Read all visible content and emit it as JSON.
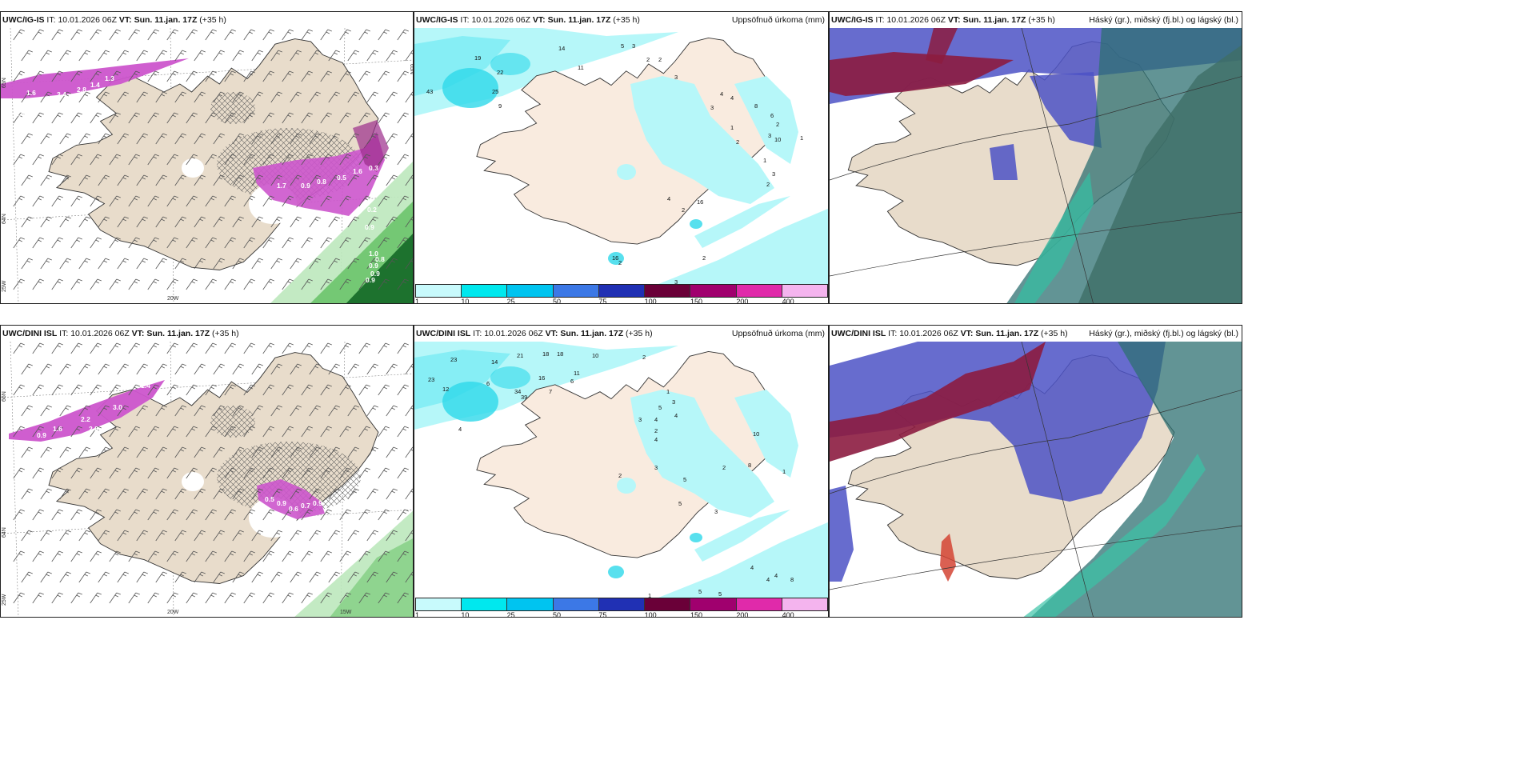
{
  "panels": [
    {
      "id": "p1",
      "model": "UWC/IG-IS",
      "it_label": "IT:",
      "it_value": "10.01.2026 06Z",
      "vt_label": "VT: Sun. 11.jan. 17Z",
      "lead": "(+35 h)",
      "right_label": "",
      "lat_labels": [
        "65N",
        "64N"
      ],
      "lon_labels": [
        "25W",
        "20W"
      ],
      "lat_right": "65N",
      "values": [
        "1.6",
        "3.4",
        "2.8",
        "1.4",
        "1.3",
        "1.5",
        "1.7",
        "0.9",
        "0.8",
        "0.5",
        "1.6",
        "0.3",
        "0.2",
        "0.9",
        "1.0",
        "0.8",
        "0.9",
        "0.9",
        "0.9"
      ]
    },
    {
      "id": "p2",
      "model": "UWC/IG-IS",
      "it_label": "IT:",
      "it_value": "10.01.2026 06Z",
      "vt_label": "VT: Sun. 11.jan. 17Z",
      "lead": "(+35 h)",
      "right_label": "Uppsöfnuð úrkoma (mm)",
      "values": [
        "19",
        "14",
        "5",
        "3",
        "2",
        "2",
        "43",
        "22",
        "25",
        "9",
        "11",
        "3",
        "4",
        "4",
        "8",
        "3",
        "6",
        "2",
        "3",
        "1",
        "10",
        "1",
        "2",
        "4",
        "3",
        "2",
        "16",
        "16",
        "2",
        "3",
        "2",
        "2",
        "6",
        "1"
      ]
    },
    {
      "id": "p3",
      "model": "UWC/IG-IS",
      "it_label": "IT:",
      "it_value": "10.01.2026 06Z",
      "vt_label": "VT: Sun. 11.jan. 17Z",
      "lead": "(+35 h)",
      "right_label": "Háský (gr.), miðský (fj.bl.) og lágský (bl.)"
    },
    {
      "id": "p4",
      "model": "UWC/DINI ISL",
      "it_label": "IT:",
      "it_value": "10.01.2026 06Z",
      "vt_label": "VT: Sun. 11.jan. 17Z",
      "lead": "(+35 h)",
      "right_label": "",
      "lat_labels": [
        "66N",
        "64N"
      ],
      "lon_labels": [
        "25W",
        "20W",
        "15W"
      ],
      "lat_right": "",
      "values": [
        "1.4",
        "3.0",
        "2.2",
        "2.8",
        "0.9",
        "1.6",
        "0.5",
        "0.9",
        "0.6",
        "0.7",
        "0.9"
      ]
    },
    {
      "id": "p5",
      "model": "UWC/DINI ISL",
      "it_label": "IT:",
      "it_value": "10.01.2026 06Z",
      "vt_label": "VT: Sun. 11.jan. 17Z",
      "lead": "(+35 h)",
      "right_label": "Uppsöfnuð úrkoma (mm)",
      "values": [
        "23",
        "21",
        "18",
        "18",
        "10",
        "2",
        "14",
        "23",
        "12",
        "16",
        "6",
        "6",
        "7",
        "39",
        "34",
        "4",
        "11",
        "1",
        "3",
        "5",
        "4",
        "4",
        "2",
        "3",
        "10",
        "8",
        "2",
        "5",
        "3",
        "2",
        "4",
        "1",
        "5",
        "3",
        "1",
        "4",
        "4",
        "4",
        "8",
        "5",
        "5"
      ]
    },
    {
      "id": "p6",
      "model": "UWC/DINI ISL",
      "it_label": "IT:",
      "it_value": "10.01.2026 06Z",
      "vt_label": "VT: Sun. 11.jan. 17Z",
      "lead": "(+35 h)",
      "right_label": "Háský (gr.), miðský (fj.bl.) og lágský (bl.)"
    }
  ],
  "colorbar": {
    "labels": [
      "1",
      "10",
      "25",
      "50",
      "75",
      "100",
      "150",
      "200",
      "400"
    ],
    "colors": [
      "#c8fafc",
      "#00e8ee",
      "#00c4f0",
      "#3c78e6",
      "#2030b4",
      "#6a0038",
      "#a0006e",
      "#e02aaa",
      "#f4b4ee"
    ]
  },
  "palette": {
    "land": "#e8dccb",
    "land_light": "#f9ebdf",
    "precip_light": "#b6f7f9",
    "precip_mid": "#86eef5",
    "precip_strong": "#2ed8ea",
    "snow": "#cc55cc",
    "green_light": "#bde8bd",
    "green_mid": "#6cc46c",
    "green_dark": "#186e2a",
    "cloud_high": "#8c1c40",
    "cloud_mid": "#4c52c6",
    "cloud_low": "#2e7072"
  }
}
